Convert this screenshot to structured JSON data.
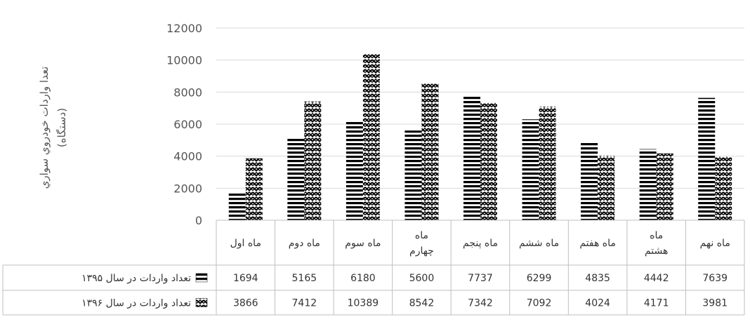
{
  "chart_data": {
    "type": "bar",
    "categories": [
      "ماه اول",
      "ماه دوم",
      "ماه سوم",
      "ماه چهارم",
      "ماه پنجم",
      "ماه ششم",
      "ماه هفتم",
      "ماه هشتم",
      "ماه نهم"
    ],
    "category_display": [
      [
        "ماه اول"
      ],
      [
        "ماه دوم"
      ],
      [
        "ماه سوم"
      ],
      [
        "ماه",
        "چهارم"
      ],
      [
        "ماه پنجم"
      ],
      [
        "ماه ششم"
      ],
      [
        "ماه هفتم"
      ],
      [
        "ماه",
        "هشتم"
      ],
      [
        "ماه نهم"
      ]
    ],
    "series": [
      {
        "name": "تعداد واردات در سال ۱۳۹۵",
        "values": [
          1694,
          5165,
          6180,
          5600,
          7737,
          6299,
          4835,
          4442,
          7639
        ],
        "pattern": "horizontal-stripes"
      },
      {
        "name": "تعداد واردات در سال ۱۳۹۶",
        "values": [
          3866,
          7412,
          10389,
          8542,
          7342,
          7092,
          4024,
          4171,
          3981
        ],
        "pattern": "zigzag"
      }
    ],
    "ylabel_lines": [
      "تعدا واردات خودروي سواري",
      "(دستگاه)"
    ],
    "ylim": [
      0,
      12000
    ],
    "yticks": [
      0,
      2000,
      4000,
      6000,
      8000,
      10000,
      12000
    ],
    "grid": true,
    "legend": "data-table"
  }
}
